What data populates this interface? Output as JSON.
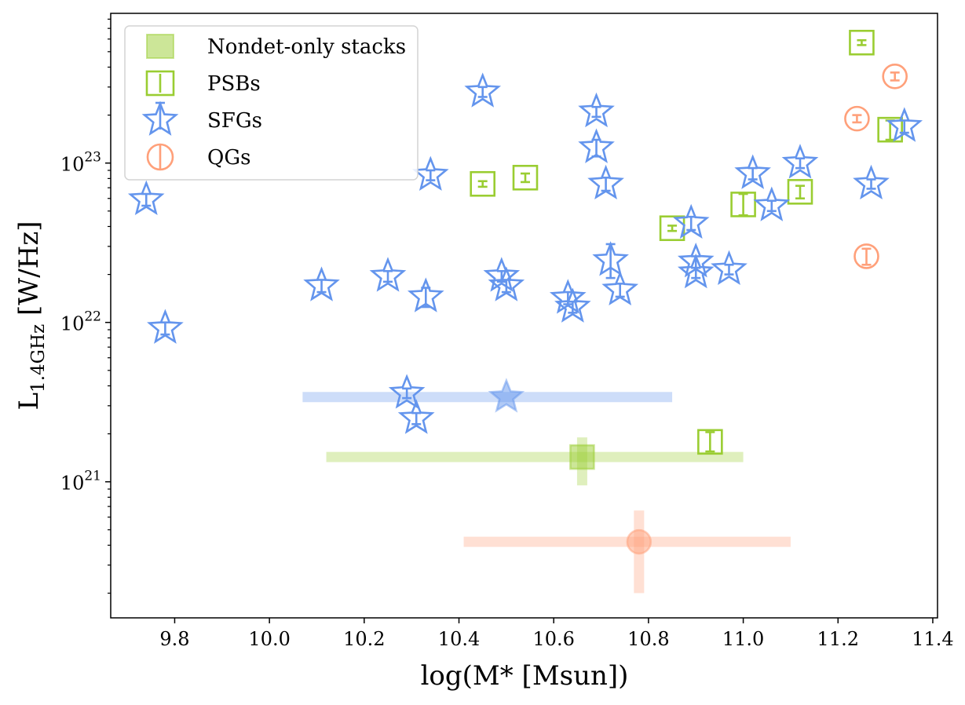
{
  "chart_data": {
    "type": "scatter",
    "xlabel": "log(M* [Msun])",
    "ylabel_main": "L",
    "ylabel_sub": "1.4GHz",
    "ylabel_unit": " [W/Hz]",
    "xlim": [
      9.665,
      11.41
    ],
    "ylim": [
      1.4e+20,
      8.7e+23
    ],
    "y_scale": "log",
    "x_ticks": [
      {
        "value": 9.8,
        "label": "9.8"
      },
      {
        "value": 10.0,
        "label": "10.0"
      },
      {
        "value": 10.2,
        "label": "10.2"
      },
      {
        "value": 10.4,
        "label": "10.4"
      },
      {
        "value": 10.6,
        "label": "10.6"
      },
      {
        "value": 10.8,
        "label": "10.8"
      },
      {
        "value": 11.0,
        "label": "11.0"
      },
      {
        "value": 11.2,
        "label": "11.2"
      },
      {
        "value": 11.4,
        "label": "11.4"
      }
    ],
    "y_ticks": [
      {
        "value": 1e+21,
        "base": "10",
        "exp": "21"
      },
      {
        "value": 1e+22,
        "base": "10",
        "exp": "22"
      },
      {
        "value": 1e+23,
        "base": "10",
        "exp": "23"
      }
    ],
    "legend": {
      "position": "top-left",
      "entries": [
        {
          "label": "Nondet-only stacks",
          "marker": "filled-square",
          "color": "#9acd32"
        },
        {
          "label": "PSBs",
          "marker": "square",
          "color": "#9acd32"
        },
        {
          "label": "SFGs",
          "marker": "star",
          "color": "#6495ed"
        },
        {
          "label": "QGs",
          "marker": "circle",
          "color": "#ffa07a"
        }
      ]
    },
    "stacks": [
      {
        "name": "SFG stack",
        "color": "#6495ed",
        "marker": "star",
        "x": 10.5,
        "y": 3.4e+21,
        "xerr": [
          10.07,
          10.85
        ],
        "yerr": null
      },
      {
        "name": "PSB stack",
        "color": "#9acd32",
        "marker": "square",
        "x": 10.66,
        "y": 1.43e+21,
        "xerr": [
          10.12,
          11.0
        ],
        "yerr": [
          9.5e+20,
          1.9e+21
        ]
      },
      {
        "name": "QG stack",
        "color": "#ffa07a",
        "marker": "circle",
        "x": 10.78,
        "y": 4.2e+20,
        "xerr": [
          10.41,
          11.1
        ],
        "yerr": [
          2e+20,
          6.6e+20
        ]
      }
    ],
    "series": [
      {
        "name": "PSBs",
        "marker": "square",
        "color": "#9acd32",
        "points": [
          {
            "x": 10.45,
            "y": 7.4e+22,
            "yerr": [
              7.1e+22,
              7.7e+22
            ]
          },
          {
            "x": 10.54,
            "y": 8.1e+22,
            "yerr": [
              7.6e+22,
              8.6e+22
            ]
          },
          {
            "x": 10.85,
            "y": 3.9e+22,
            "yerr": [
              3.75e+22,
              4.05e+22
            ]
          },
          {
            "x": 11.0,
            "y": 5.5e+22,
            "yerr": [
              4.7e+22,
              6.4e+22
            ]
          },
          {
            "x": 11.12,
            "y": 6.6e+22,
            "yerr": [
              6e+22,
              7.2e+22
            ]
          },
          {
            "x": 11.25,
            "y": 5.7e+23,
            "yerr": [
              5.5e+23,
              5.9e+23
            ]
          },
          {
            "x": 11.31,
            "y": 1.62e+23,
            "yerr": [
              1.4e+23,
              1.85e+23
            ]
          },
          {
            "x": 10.93,
            "y": 1.78e+21,
            "yerr": [
              1.55e+21,
              2.05e+21
            ]
          }
        ]
      },
      {
        "name": "SFGs",
        "marker": "star",
        "color": "#6495ed",
        "points": [
          {
            "x": 9.74,
            "y": 5.9e+22,
            "yerr": [
              5.4e+22,
              6.4e+22
            ]
          },
          {
            "x": 9.78,
            "y": 9.2e+21,
            "yerr": [
              8.4e+21,
              1e+22
            ]
          },
          {
            "x": 10.11,
            "y": 1.7e+22,
            "yerr": [
              1.55e+22,
              1.85e+22
            ]
          },
          {
            "x": 10.25,
            "y": 1.95e+22,
            "yerr": [
              1.8e+22,
              2.1e+22
            ]
          },
          {
            "x": 10.33,
            "y": 1.45e+22,
            "yerr": [
              1.25e+22,
              1.65e+22
            ]
          },
          {
            "x": 10.34,
            "y": 8.4e+22,
            "yerr": [
              7.8e+22,
              9e+22
            ]
          },
          {
            "x": 10.45,
            "y": 2.8e+23,
            "yerr": [
              2.6e+23,
              3e+23
            ]
          },
          {
            "x": 10.49,
            "y": 1.95e+22,
            "yerr": [
              1.8e+22,
              2.1e+22
            ]
          },
          {
            "x": 10.5,
            "y": 1.7e+22,
            "yerr": [
              1.55e+22,
              1.85e+22
            ]
          },
          {
            "x": 10.63,
            "y": 1.42e+22,
            "yerr": [
              1.3e+22,
              1.55e+22
            ]
          },
          {
            "x": 10.64,
            "y": 1.25e+22,
            "yerr": [
              1.15e+22,
              1.35e+22
            ]
          },
          {
            "x": 10.69,
            "y": 2.1e+23,
            "yerr": [
              1.95e+23,
              2.25e+23
            ]
          },
          {
            "x": 10.69,
            "y": 1.25e+23,
            "yerr": [
              1.1e+23,
              1.4e+23
            ]
          },
          {
            "x": 10.71,
            "y": 7.4e+22,
            "yerr": [
              6.7e+22,
              8.1e+22
            ]
          },
          {
            "x": 10.72,
            "y": 2.45e+22,
            "yerr": [
              1.9e+22,
              3.1e+22
            ]
          },
          {
            "x": 10.74,
            "y": 1.6e+22,
            "yerr": [
              1.45e+22,
              1.75e+22
            ]
          },
          {
            "x": 10.89,
            "y": 4.2e+22,
            "yerr": [
              3.8e+22,
              4.6e+22
            ]
          },
          {
            "x": 10.9,
            "y": 2.4e+22,
            "yerr": [
              2.2e+22,
              2.6e+22
            ]
          },
          {
            "x": 10.9,
            "y": 2.05e+22,
            "yerr": [
              1.9e+22,
              2.2e+22
            ]
          },
          {
            "x": 10.97,
            "y": 2.15e+22,
            "yerr": [
              2e+22,
              2.3e+22
            ]
          },
          {
            "x": 11.02,
            "y": 8.6e+22,
            "yerr": [
              7.9e+22,
              9.3e+22
            ]
          },
          {
            "x": 11.06,
            "y": 5.4e+22,
            "yerr": [
              5e+22,
              5.8e+22
            ]
          },
          {
            "x": 11.12,
            "y": 1e+23,
            "yerr": [
              9.3e+22,
              1.07e+23
            ]
          },
          {
            "x": 11.27,
            "y": 7.4e+22,
            "yerr": [
              6.9e+22,
              7.9e+22
            ]
          },
          {
            "x": 11.34,
            "y": 1.7e+23,
            "yerr": [
              1.55e+23,
              1.85e+23
            ]
          },
          {
            "x": 10.29,
            "y": 3.6e+21,
            "yerr": [
              3.35e+21,
              3.85e+21
            ]
          },
          {
            "x": 10.31,
            "y": 2.5e+21,
            "yerr": [
              2.3e+21,
              2.7e+21
            ]
          }
        ]
      },
      {
        "name": "QGs",
        "marker": "circle",
        "color": "#ffa07a",
        "points": [
          {
            "x": 11.32,
            "y": 3.5e+23,
            "yerr": [
              3.3e+23,
              3.7e+23
            ]
          },
          {
            "x": 11.24,
            "y": 1.9e+23,
            "yerr": [
              1.8e+23,
              2e+23
            ]
          },
          {
            "x": 11.26,
            "y": 2.6e+22,
            "yerr": [
              2.3e+22,
              2.9e+22
            ]
          }
        ]
      }
    ]
  }
}
